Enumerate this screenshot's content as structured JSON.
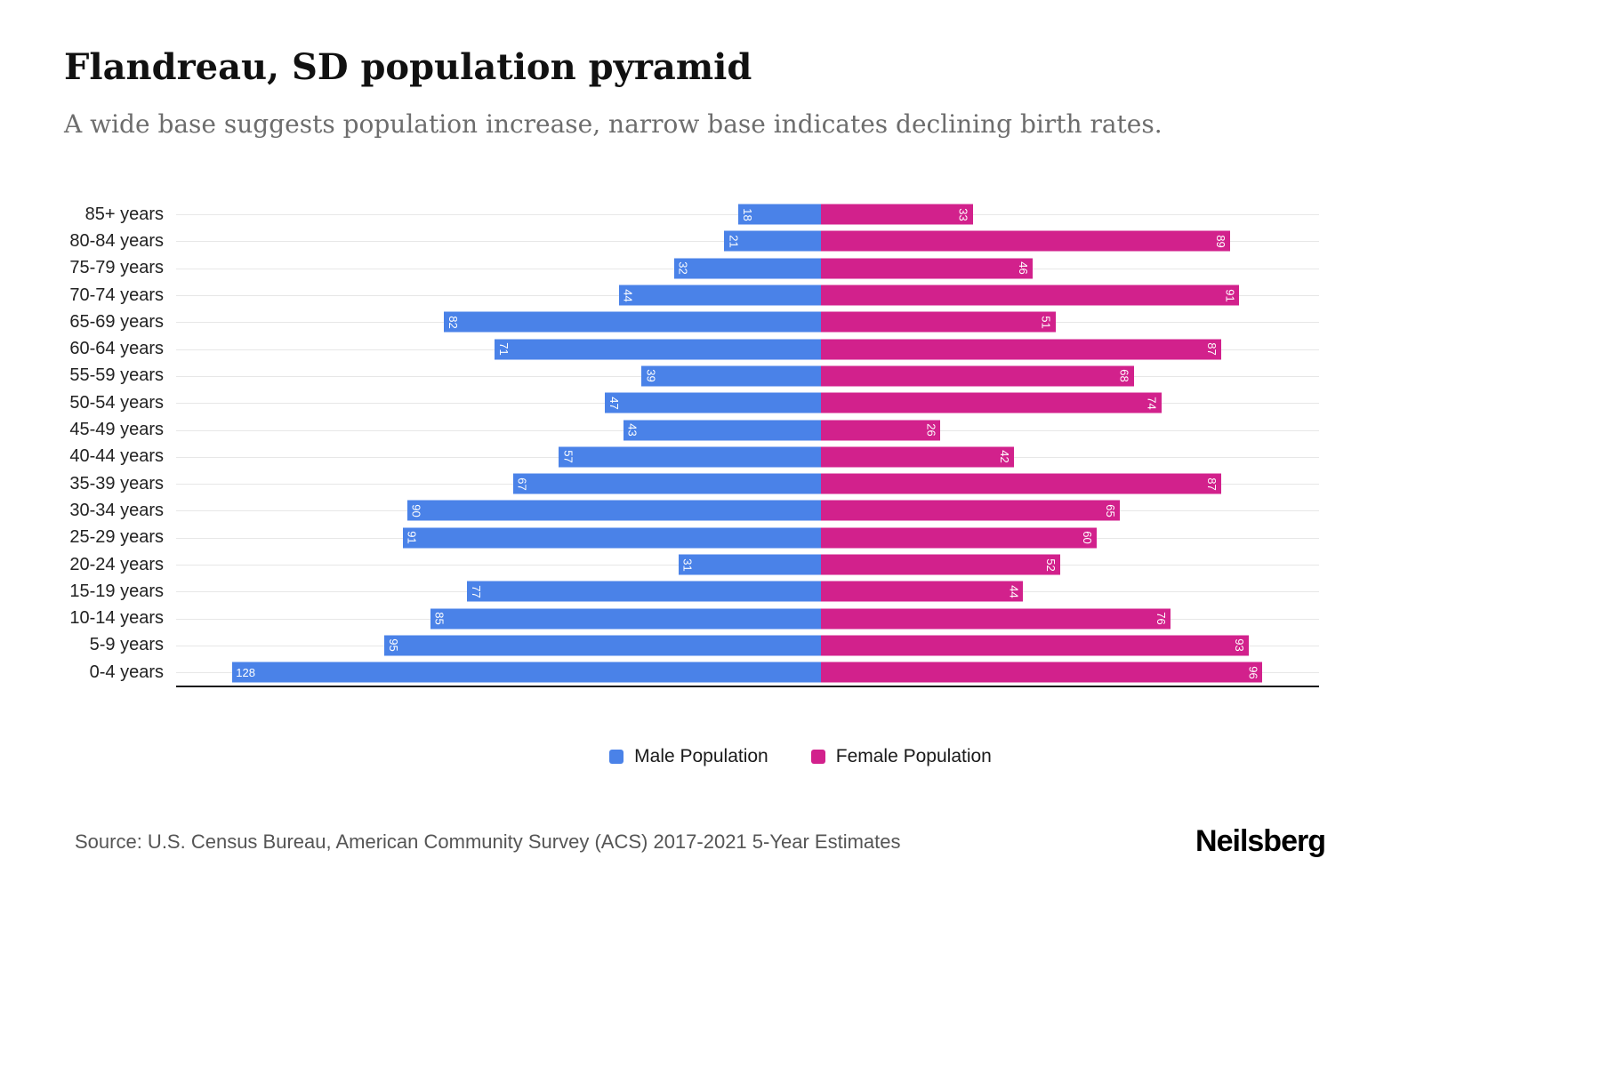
{
  "header": {
    "title": "Flandreau, SD population pyramid",
    "subtitle": "A wide base suggests population increase, narrow base indicates declining birth rates."
  },
  "chart_data": {
    "type": "bar",
    "variant": "population-pyramid",
    "title": "Flandreau, SD population pyramid",
    "subtitle": "A wide base suggests population increase, narrow base indicates declining birth rates.",
    "categories": [
      "85+ years",
      "80-84 years",
      "75-79 years",
      "70-74 years",
      "65-69 years",
      "60-64 years",
      "55-59 years",
      "50-54 years",
      "45-49 years",
      "40-44 years",
      "35-39 years",
      "30-34 years",
      "25-29 years",
      "20-24 years",
      "15-19 years",
      "10-14 years",
      "5-9 years",
      "0-4 years"
    ],
    "series": [
      {
        "name": "Male Population",
        "color": "#4a82e8",
        "direction": "left",
        "values": [
          18,
          21,
          32,
          44,
          82,
          71,
          39,
          47,
          43,
          57,
          67,
          90,
          91,
          31,
          77,
          85,
          95,
          128
        ]
      },
      {
        "name": "Female Population",
        "color": "#d2218c",
        "direction": "right",
        "values": [
          33,
          89,
          46,
          91,
          51,
          87,
          68,
          74,
          26,
          42,
          87,
          65,
          60,
          52,
          44,
          76,
          93,
          96
        ]
      }
    ],
    "xlim": [
      -140,
      108
    ],
    "grid": true,
    "legend_position": "bottom",
    "value_labels": "inside-end-white"
  },
  "footer": {
    "source": "Source: U.S. Census Bureau, American Community Survey (ACS) 2017-2021 5-Year Estimates",
    "brand": "Neilsberg"
  }
}
